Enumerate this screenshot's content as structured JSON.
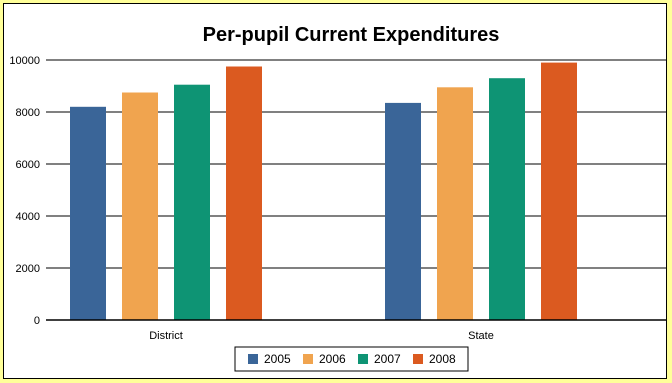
{
  "chart_data": {
    "type": "bar",
    "title": "Per-pupil Current Expenditures",
    "categories": [
      "District",
      "State"
    ],
    "series": [
      {
        "name": "2005",
        "color": "#3a6598",
        "values": [
          8200,
          8350
        ]
      },
      {
        "name": "2006",
        "color": "#f0a44f",
        "values": [
          8750,
          8950
        ]
      },
      {
        "name": "2007",
        "color": "#0e9474",
        "values": [
          9050,
          9300
        ]
      },
      {
        "name": "2008",
        "color": "#db5a20",
        "values": [
          9750,
          9900
        ]
      }
    ],
    "ylim": [
      0,
      10000
    ],
    "yticks": [
      0,
      2000,
      4000,
      6000,
      8000,
      10000
    ],
    "grid": true,
    "legend_position": "bottom"
  },
  "colors": {
    "background": "#ffff99",
    "panel": "#ffffff"
  }
}
